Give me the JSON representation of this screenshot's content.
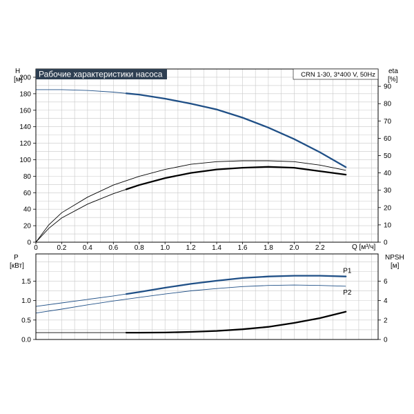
{
  "chart_data": [
    {
      "type": "line",
      "title": "Рабочие характеристики насоса",
      "subtitle": "CRN 1-30, 3*400 V, 50Hz",
      "left_axis": {
        "label_top": "H",
        "label_unit": "[м]",
        "range": [
          0,
          210
        ],
        "ticks": [
          "0",
          "20",
          "40",
          "60",
          "80",
          "100",
          "120",
          "140",
          "160",
          "180",
          "200"
        ]
      },
      "right_axis": {
        "label_top": "eta",
        "label_unit": "[%]",
        "range": [
          0,
          100
        ],
        "ticks": [
          "0",
          "10",
          "20",
          "30",
          "40",
          "50",
          "60",
          "70",
          "80",
          "90"
        ]
      },
      "x_axis": {
        "label": "Q [м³/ч]",
        "range": [
          0,
          2.65
        ],
        "ticks": [
          "0",
          "0.2",
          "0.4",
          "0.6",
          "0.8",
          "1.0",
          "1.2",
          "1.4",
          "1.6",
          "1.8",
          "2.0",
          "2.2"
        ]
      },
      "grid": true,
      "series": [
        {
          "axis": "left",
          "color": "#1f4f86",
          "x": [
            0,
            0.2,
            0.4,
            0.6,
            0.8,
            1.0,
            1.2,
            1.4,
            1.6,
            1.8,
            2.0,
            2.2,
            2.4
          ],
          "y": [
            185,
            185,
            184,
            182,
            179,
            174,
            168,
            161,
            151,
            139,
            125,
            109,
            91
          ],
          "bold_from": 0.7
        },
        {
          "axis": "right",
          "color": "#000000",
          "x": [
            0,
            0.1,
            0.2,
            0.4,
            0.6,
            0.8,
            1.0,
            1.2,
            1.4,
            1.6,
            1.8,
            2.0,
            2.2,
            2.4
          ],
          "y": [
            0,
            8,
            14,
            22,
            28,
            33,
            37,
            40,
            42,
            43,
            43.5,
            43,
            41,
            39
          ],
          "bold_from": 0.7
        },
        {
          "axis": "right",
          "color": "#000000",
          "x": [
            0,
            0.1,
            0.2,
            0.4,
            0.6,
            0.8,
            1.0,
            1.2,
            1.4,
            1.6,
            1.8,
            2.0,
            2.2,
            2.4
          ],
          "y": [
            0,
            10,
            17,
            26,
            33,
            38,
            42,
            45,
            46.5,
            47,
            47,
            46.5,
            44.5,
            41.5
          ],
          "bold_from": 9
        }
      ]
    },
    {
      "type": "line",
      "left_axis": {
        "label_top": "P",
        "label_unit": "[кВт]",
        "range": [
          0,
          2.2
        ],
        "ticks": [
          "0.0",
          "0.5",
          "1.0",
          "1.5"
        ]
      },
      "right_axis": {
        "label_top": "NPSH",
        "label_unit": "[м]",
        "range": [
          0,
          8.8
        ],
        "ticks": [
          "0",
          "2",
          "4",
          "6"
        ]
      },
      "grid": true,
      "series": [
        {
          "name": "P1",
          "axis": "left",
          "color": "#1f4f86",
          "x": [
            0,
            0.2,
            0.4,
            0.6,
            0.8,
            1.0,
            1.2,
            1.4,
            1.6,
            1.8,
            2.0,
            2.2,
            2.4
          ],
          "y": [
            0.85,
            0.94,
            1.03,
            1.12,
            1.22,
            1.33,
            1.43,
            1.51,
            1.58,
            1.62,
            1.64,
            1.64,
            1.62
          ],
          "bold_from": 0.7
        },
        {
          "name": "P2",
          "axis": "left",
          "color": "#1f4f86",
          "x": [
            0,
            0.2,
            0.4,
            0.6,
            0.8,
            1.0,
            1.2,
            1.4,
            1.6,
            1.8,
            2.0,
            2.2,
            2.4
          ],
          "y": [
            0.68,
            0.78,
            0.89,
            0.99,
            1.08,
            1.17,
            1.25,
            1.31,
            1.36,
            1.39,
            1.4,
            1.39,
            1.37
          ],
          "bold_from": 9
        },
        {
          "axis": "right",
          "color": "#000000",
          "x": [
            0,
            0.2,
            0.4,
            0.6,
            0.7,
            0.8,
            1.0,
            1.2,
            1.4,
            1.6,
            1.8,
            2.0,
            2.2,
            2.4
          ],
          "y": [
            0.7,
            0.7,
            0.7,
            0.7,
            0.7,
            0.7,
            0.72,
            0.78,
            0.88,
            1.05,
            1.3,
            1.7,
            2.2,
            2.85
          ],
          "bold_from": 0.7
        }
      ]
    }
  ]
}
